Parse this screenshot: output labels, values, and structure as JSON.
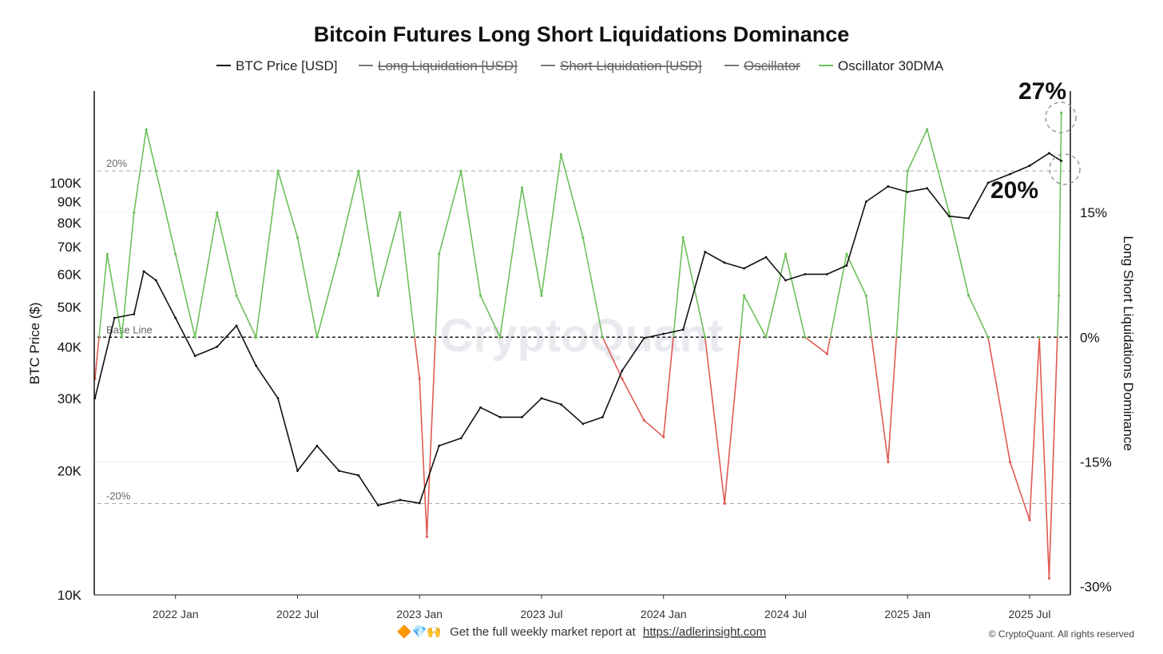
{
  "chart_data": {
    "type": "line",
    "title": "Bitcoin Futures Long Short Liquidations Dominance",
    "legend": [
      {
        "name": "BTC Price [USD]",
        "color": "#111111",
        "visible": true
      },
      {
        "name": "Long Liquidation [USD]",
        "color": "#888888",
        "visible": false
      },
      {
        "name": "Short Liquidation [USD]",
        "color": "#444466",
        "visible": false
      },
      {
        "name": "Oscillator",
        "color": "#666666",
        "visible": false
      },
      {
        "name": "Oscillator 30DMA",
        "color": "#6cc05a",
        "visible": true
      }
    ],
    "x_ticks": [
      "2022 Jan",
      "2022 Jul",
      "2023 Jan",
      "2023 Jul",
      "2024 Jan",
      "2024 Jul",
      "2025 Jan",
      "2025 Jul"
    ],
    "x_range": [
      "2021-09-01",
      "2025-08-31"
    ],
    "y_left": {
      "label": "BTC Price ($)",
      "scale": "log",
      "range": [
        10000,
        170000
      ],
      "ticks": [
        10000,
        20000,
        30000,
        40000,
        50000,
        60000,
        70000,
        80000,
        90000,
        100000
      ],
      "tick_labels": [
        "10K",
        "20K",
        "30K",
        "40K",
        "50K",
        "60K",
        "70K",
        "80K",
        "90K",
        "100K"
      ]
    },
    "y_right": {
      "label": "Long Short Liquidations Dominance",
      "range": [
        -31,
        30
      ],
      "ticks": [
        15,
        0,
        -15,
        -30
      ],
      "tick_labels": [
        "15%",
        "0%",
        "-15%",
        "-30%"
      ]
    },
    "reference_lines": [
      {
        "value": 20,
        "label": "20%"
      },
      {
        "value": 0,
        "label": "Base Line"
      },
      {
        "value": -20,
        "label": "-20%"
      }
    ],
    "series": [
      {
        "name": "BTC Price [USD]",
        "axis": "left",
        "color": "#111111",
        "x": [
          2021.67,
          2021.75,
          2021.83,
          2021.87,
          2021.92,
          2022.0,
          2022.08,
          2022.17,
          2022.25,
          2022.33,
          2022.42,
          2022.5,
          2022.58,
          2022.67,
          2022.75,
          2022.83,
          2022.92,
          2023.0,
          2023.08,
          2023.17,
          2023.25,
          2023.33,
          2023.42,
          2023.5,
          2023.58,
          2023.67,
          2023.75,
          2023.83,
          2023.92,
          2024.0,
          2024.08,
          2024.17,
          2024.25,
          2024.33,
          2024.42,
          2024.5,
          2024.58,
          2024.67,
          2024.75,
          2024.83,
          2024.92,
          2025.0,
          2025.08,
          2025.17,
          2025.25,
          2025.33,
          2025.42,
          2025.5,
          2025.58,
          2025.63
        ],
        "values": [
          30000,
          47000,
          48000,
          61000,
          58000,
          47000,
          38000,
          40000,
          45000,
          36000,
          30000,
          20000,
          23000,
          20000,
          19500,
          16500,
          17000,
          16700,
          23000,
          24000,
          28500,
          27000,
          27000,
          30000,
          29000,
          26000,
          27000,
          35000,
          42000,
          43000,
          44000,
          68000,
          64000,
          62000,
          66000,
          58000,
          60000,
          60000,
          63000,
          90000,
          98000,
          95000,
          97000,
          83000,
          82000,
          100000,
          105000,
          110000,
          118000,
          113000
        ]
      },
      {
        "name": "Oscillator 30DMA",
        "axis": "right",
        "positive_color": "#6cc05a",
        "negative_color": "#e05a52",
        "x": [
          2021.67,
          2021.72,
          2021.78,
          2021.83,
          2021.88,
          2021.92,
          2022.0,
          2022.08,
          2022.17,
          2022.25,
          2022.33,
          2022.42,
          2022.5,
          2022.58,
          2022.67,
          2022.75,
          2022.83,
          2022.92,
          2023.0,
          2023.03,
          2023.08,
          2023.17,
          2023.25,
          2023.33,
          2023.42,
          2023.5,
          2023.58,
          2023.67,
          2023.75,
          2023.83,
          2023.92,
          2024.0,
          2024.08,
          2024.17,
          2024.25,
          2024.33,
          2024.42,
          2024.5,
          2024.58,
          2024.67,
          2024.75,
          2024.83,
          2024.92,
          2025.0,
          2025.08,
          2025.17,
          2025.25,
          2025.33,
          2025.42,
          2025.5,
          2025.54,
          2025.58,
          2025.62,
          2025.63
        ],
        "values": [
          -5,
          10,
          0,
          15,
          25,
          20,
          10,
          0,
          15,
          5,
          0,
          20,
          12,
          0,
          10,
          20,
          5,
          15,
          -5,
          -24,
          10,
          20,
          5,
          0,
          18,
          5,
          22,
          12,
          0,
          -5,
          -10,
          -12,
          12,
          0,
          -20,
          5,
          0,
          10,
          0,
          -2,
          10,
          5,
          -15,
          20,
          25,
          15,
          5,
          0,
          -15,
          -22,
          0,
          -29,
          5,
          27
        ]
      }
    ],
    "annotations": [
      {
        "text": "27%",
        "highlight": "latest oscillator peak"
      },
      {
        "text": "20%",
        "highlight": "20% threshold crossing"
      }
    ],
    "watermark": "CryptoQuant"
  },
  "footer": {
    "emojis": "🔶💎🙌",
    "text": "Get the full weekly market report at",
    "link": "https://adlerinsight.com",
    "copyright": "© CryptoQuant. All rights reserved"
  }
}
